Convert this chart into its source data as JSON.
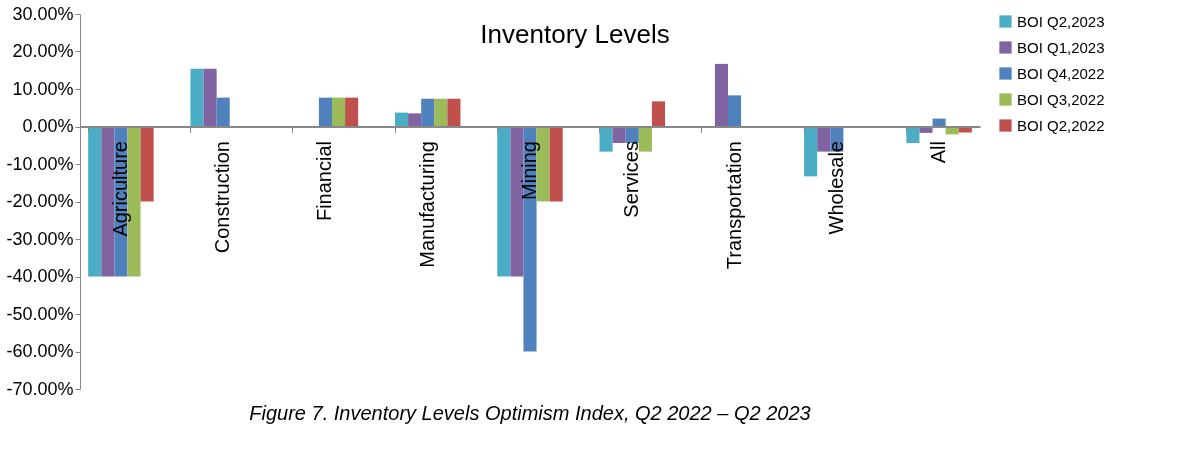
{
  "chart_data": {
    "type": "bar",
    "title": "Inventory Levels",
    "annotations": [
      "Figure 7. Inventory Levels Optimism Index, Q2 2022 – Q2 2023"
    ],
    "categories": [
      "Agriculture",
      "Construction",
      "Financial",
      "Manufacturing",
      "Mining",
      "Services",
      "Transportation",
      "Wholesale",
      "All"
    ],
    "series": [
      {
        "name": "BOI Q2,2023",
        "color": "#4bacc6",
        "values": [
          -40,
          15.4,
          0,
          3.7,
          -40,
          -6.7,
          0,
          -13.3,
          -4.4
        ]
      },
      {
        "name": "BOI Q1,2023",
        "color": "#8064a2",
        "values": [
          -40,
          15.4,
          0,
          3.5,
          -40,
          -4.4,
          16.7,
          -6.7,
          -1.7
        ]
      },
      {
        "name": "BOI Q4,2022",
        "color": "#4f81bd",
        "values": [
          -40,
          7.7,
          7.7,
          7.4,
          -60,
          -4.4,
          8.3,
          -6.7,
          2.1
        ]
      },
      {
        "name": "BOI Q3,2022",
        "color": "#9bbb59",
        "values": [
          -40,
          0,
          7.7,
          7.4,
          -20,
          -6.7,
          0,
          0,
          -2.1
        ]
      },
      {
        "name": "BOI Q2,2022",
        "color": "#c0504d",
        "values": [
          -20,
          0,
          7.7,
          7.4,
          -20,
          6.7,
          0,
          0,
          -1.6
        ]
      }
    ],
    "ylim": [
      -70,
      30
    ],
    "yticks": [
      {
        "value": 30,
        "label": "30.00%"
      },
      {
        "value": 20,
        "label": "20.00%"
      },
      {
        "value": 10,
        "label": "10.00%"
      },
      {
        "value": 0,
        "label": "0.00%"
      },
      {
        "value": -10,
        "label": "-10.00%"
      },
      {
        "value": -20,
        "label": "-20.00%"
      },
      {
        "value": -30,
        "label": "-30.00%"
      },
      {
        "value": -40,
        "label": "-40.00%"
      },
      {
        "value": -50,
        "label": "-50.00%"
      },
      {
        "value": -60,
        "label": "-60.00%"
      },
      {
        "value": -70,
        "label": "-70.00%"
      }
    ],
    "grid": false,
    "legend": "right"
  }
}
